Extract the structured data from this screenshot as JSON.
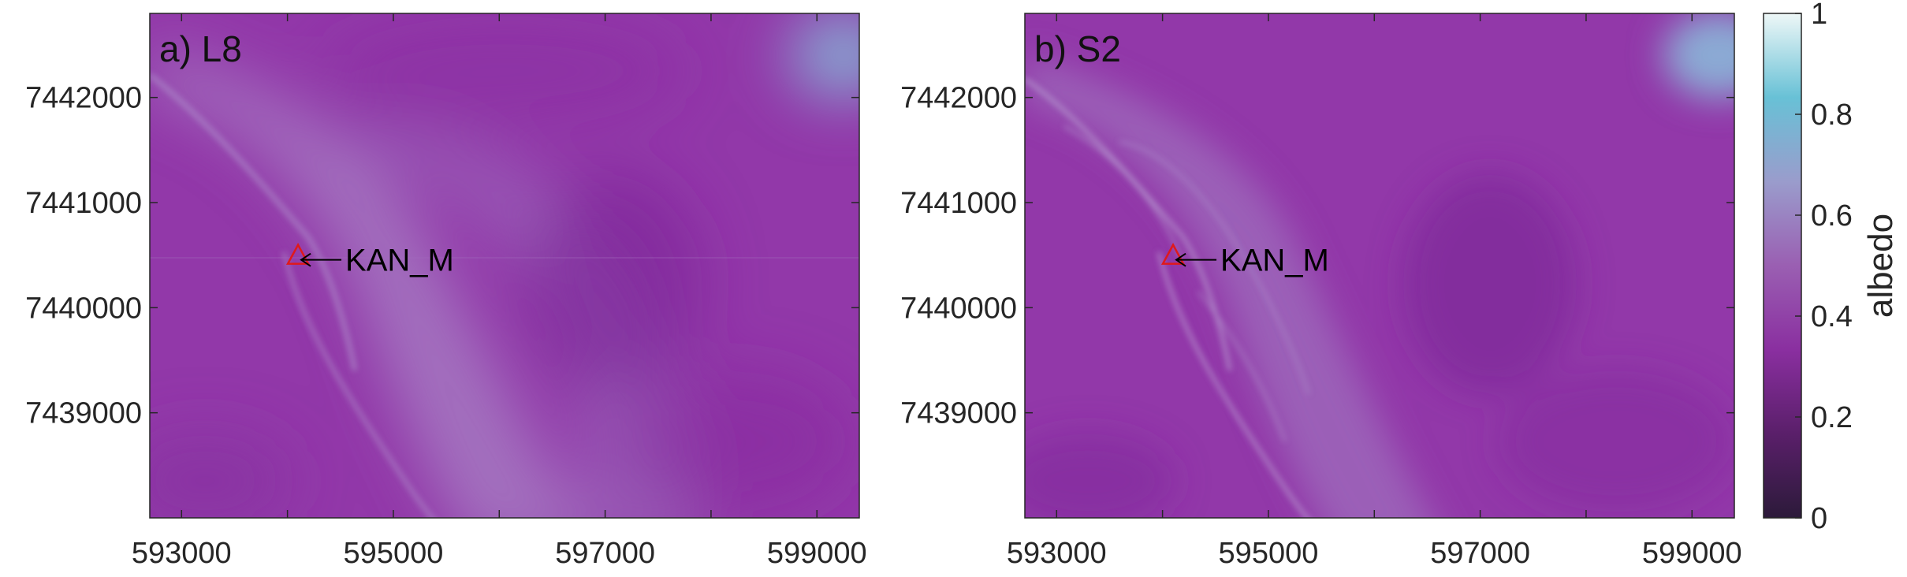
{
  "panels": [
    {
      "id": "L8",
      "label": "a) L8",
      "station": {
        "name": "KAN_M",
        "easting": 594100,
        "northing": 7440500
      },
      "x_ticks": [
        {
          "value": 593000,
          "label": "593000"
        },
        {
          "value": 594000,
          "label": ""
        },
        {
          "value": 595000,
          "label": "595000"
        },
        {
          "value": 596000,
          "label": ""
        },
        {
          "value": 597000,
          "label": "597000"
        },
        {
          "value": 598000,
          "label": ""
        },
        {
          "value": 599000,
          "label": "599000"
        }
      ],
      "y_ticks": [
        {
          "value": 7442000,
          "label": "7442000"
        },
        {
          "value": 7441000,
          "label": "7441000"
        },
        {
          "value": 7440000,
          "label": "7440000"
        },
        {
          "value": 7439000,
          "label": "7439000"
        }
      ]
    },
    {
      "id": "S2",
      "label": "b) S2",
      "station": {
        "name": "KAN_M",
        "easting": 594100,
        "northing": 7440500
      },
      "x_ticks": [
        {
          "value": 593000,
          "label": "593000"
        },
        {
          "value": 594000,
          "label": ""
        },
        {
          "value": 595000,
          "label": "595000"
        },
        {
          "value": 596000,
          "label": ""
        },
        {
          "value": 597000,
          "label": "597000"
        },
        {
          "value": 598000,
          "label": ""
        },
        {
          "value": 599000,
          "label": "599000"
        }
      ],
      "y_ticks": [
        {
          "value": 7442000,
          "label": "7442000"
        },
        {
          "value": 7441000,
          "label": "7441000"
        },
        {
          "value": 7440000,
          "label": "7440000"
        },
        {
          "value": 7439000,
          "label": "7439000"
        }
      ]
    }
  ],
  "extent": {
    "xlim": [
      592700,
      599400
    ],
    "ylim": [
      7438000,
      7442800
    ]
  },
  "colorbar": {
    "title": "albedo",
    "range": [
      0,
      1
    ],
    "ticks": [
      {
        "value": 0,
        "label": "0"
      },
      {
        "value": 0.2,
        "label": "0.2"
      },
      {
        "value": 0.4,
        "label": "0.4"
      },
      {
        "value": 0.6,
        "label": "0.6"
      },
      {
        "value": 0.8,
        "label": "0.8"
      },
      {
        "value": 1,
        "label": "1"
      }
    ],
    "colors": [
      "#2c1a3a",
      "#5a1f6a",
      "#8a2fa0",
      "#9a5fb2",
      "#9a9ccc",
      "#68c1d6",
      "#eef7f7"
    ]
  },
  "map_colors": {
    "ice_base": "#9238a9",
    "bright_ice": "#a27ac0",
    "dark_ice": "#80289a",
    "station_marker": "#e0191b",
    "arrow": "#000000"
  }
}
